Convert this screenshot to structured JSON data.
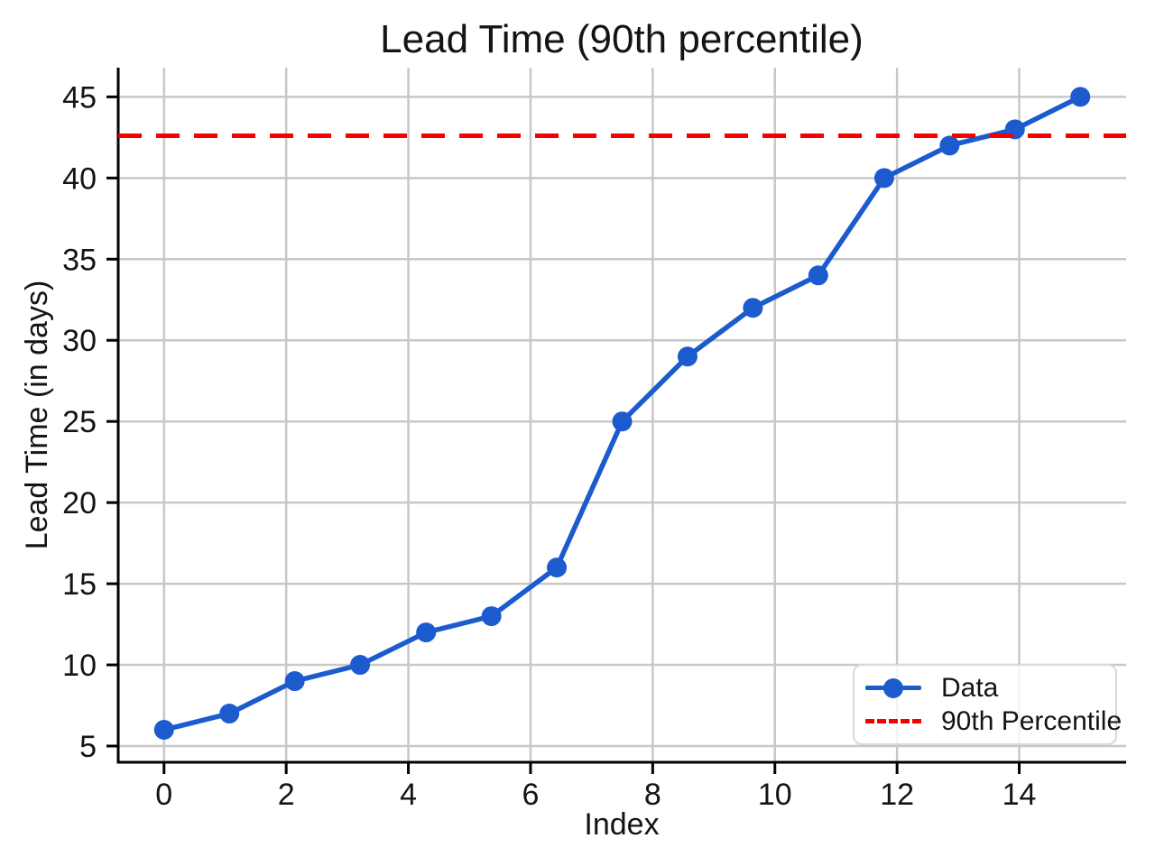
{
  "chart_data": {
    "type": "line",
    "title": "Lead Time (90th percentile)",
    "xlabel": "Index",
    "ylabel": "Lead Time (in days)",
    "x": [
      0,
      1.07,
      2.14,
      3.21,
      4.29,
      5.36,
      6.43,
      7.5,
      8.57,
      9.64,
      10.71,
      11.79,
      12.86,
      13.93,
      15
    ],
    "series": [
      {
        "name": "Data",
        "type": "line",
        "values": [
          6,
          7,
          9,
          10,
          12,
          13,
          16,
          25,
          29,
          32,
          34,
          40,
          42,
          43,
          45
        ],
        "color": "#1b5bce",
        "marker": "circle"
      },
      {
        "name": "90th Percentile",
        "type": "hline",
        "value": 42.6,
        "color": "#f40000",
        "style": "dashed"
      }
    ],
    "xticks": [
      0,
      2,
      4,
      6,
      8,
      10,
      12,
      14
    ],
    "yticks": [
      5,
      10,
      15,
      20,
      25,
      30,
      35,
      40,
      45
    ],
    "xlim": [
      -0.75,
      15.75
    ],
    "ylim": [
      4.0,
      46.8
    ],
    "grid": true,
    "legend_position": "lower right"
  },
  "legend": {
    "items": [
      {
        "label": "Data"
      },
      {
        "label": "90th Percentile"
      }
    ]
  },
  "colors": {
    "series_blue": "#1b5bce",
    "percentile_red": "#f40000",
    "grid": "#c8c8c8",
    "spine": "#000000",
    "text": "#141414",
    "legend_border": "#d9d9d9"
  }
}
